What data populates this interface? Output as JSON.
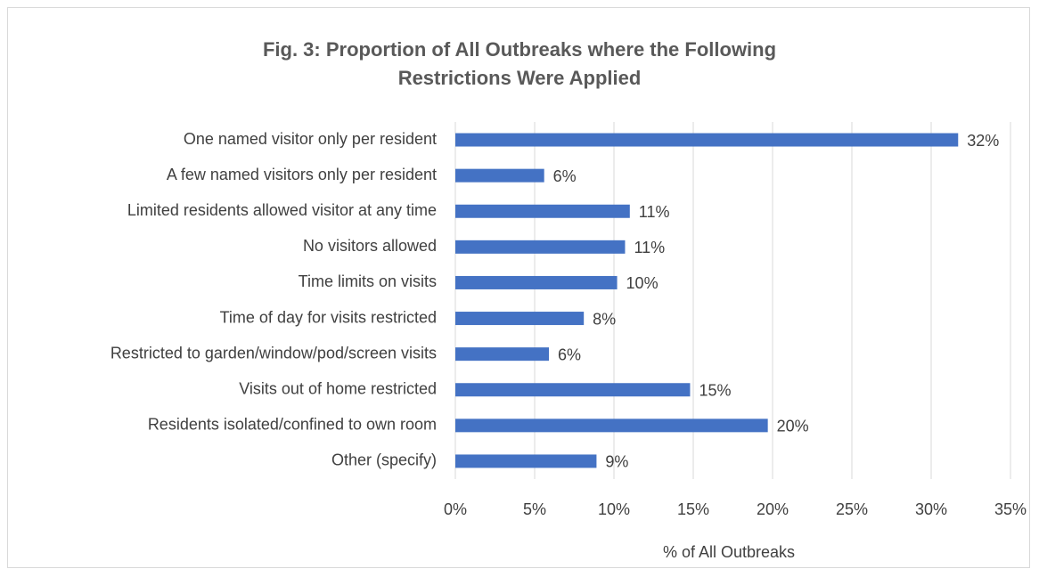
{
  "chart_data": {
    "type": "barh",
    "title": "Fig. 3: Proportion of All Outbreaks where the Following Restrictions Were Applied",
    "xlabel": "% of All Outbreaks",
    "categories": [
      "One named visitor only per resident",
      "A few named visitors only per resident",
      "Limited residents allowed visitor at any time",
      "No visitors allowed",
      "Time limits on visits",
      "Time of day for visits restricted",
      "Restricted to garden/window/pod/screen visits",
      "Visits out of home restricted",
      "Residents isolated/confined to own room",
      "Other (specify)"
    ],
    "values": [
      31.7,
      5.6,
      11.0,
      10.7,
      10.2,
      8.1,
      5.9,
      14.8,
      19.7,
      8.9
    ],
    "value_labels": [
      "32%",
      "6%",
      "11%",
      "11%",
      "10%",
      "8%",
      "6%",
      "15%",
      "20%",
      "9%"
    ],
    "color": "#4472c4",
    "xlim": [
      0,
      35
    ],
    "xticks": [
      {
        "value": 0,
        "label": "0%"
      },
      {
        "value": 5,
        "label": "5%"
      },
      {
        "value": 10,
        "label": "10%"
      },
      {
        "value": 15,
        "label": "15%"
      },
      {
        "value": 20,
        "label": "20%"
      },
      {
        "value": 25,
        "label": "25%"
      },
      {
        "value": 30,
        "label": "30%"
      },
      {
        "value": 35,
        "label": "35%"
      }
    ],
    "grid": true
  }
}
